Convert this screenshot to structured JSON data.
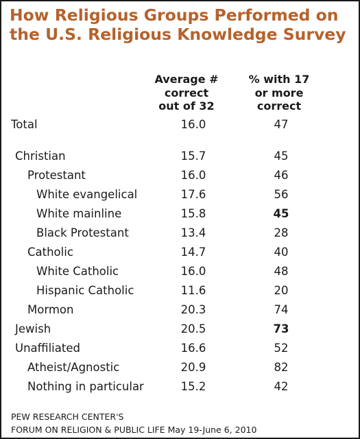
{
  "title": "How Religious Groups Performed on the U.S. Religious Knowledge Survey",
  "columns": {
    "col1": [
      "Average #",
      "correct",
      "out of 32"
    ],
    "col2": [
      "% with 17",
      "or more",
      "correct"
    ]
  },
  "source": [
    "PEW RESEARCH CENTER'S",
    "FORUM ON RELIGION & PUBLIC LIFE May 19-June 6, 2010"
  ],
  "chart_data": {
    "type": "table",
    "title": "How Religious Groups Performed on the U.S. Religious Knowledge Survey",
    "columns": [
      "Average # correct out of 32",
      "% with 17 or more correct"
    ],
    "rows": [
      {
        "label": "Total",
        "level": 0,
        "avg": "16.0",
        "pct": "47",
        "pct_bold": false
      },
      {
        "label": "Christian",
        "level": 1,
        "avg": "15.7",
        "pct": "45",
        "pct_bold": false
      },
      {
        "label": "Protestant",
        "level": 2,
        "avg": "16.0",
        "pct": "46",
        "pct_bold": false
      },
      {
        "label": "White evangelical",
        "level": 3,
        "avg": "17.6",
        "pct": "56",
        "pct_bold": false
      },
      {
        "label": "White mainline",
        "level": 3,
        "avg": "15.8",
        "pct": "45",
        "pct_bold": true
      },
      {
        "label": "Black Protestant",
        "level": 3,
        "avg": "13.4",
        "pct": "28",
        "pct_bold": false
      },
      {
        "label": "Catholic",
        "level": 2,
        "avg": "14.7",
        "pct": "40",
        "pct_bold": false
      },
      {
        "label": "White Catholic",
        "level": 3,
        "avg": "16.0",
        "pct": "48",
        "pct_bold": false
      },
      {
        "label": "Hispanic Catholic",
        "level": 3,
        "avg": "11.6",
        "pct": "20",
        "pct_bold": false
      },
      {
        "label": "Mormon",
        "level": 2,
        "avg": "20.3",
        "pct": "74",
        "pct_bold": false
      },
      {
        "label": "Jewish",
        "level": 1,
        "avg": "20.5",
        "pct": "73",
        "pct_bold": true
      },
      {
        "label": "Unaffiliated",
        "level": 1,
        "avg": "16.6",
        "pct": "52",
        "pct_bold": false
      },
      {
        "label": "Atheist/Agnostic",
        "level": 2,
        "avg": "20.9",
        "pct": "82",
        "pct_bold": false
      },
      {
        "label": "Nothing in particular",
        "level": 2,
        "avg": "15.2",
        "pct": "42",
        "pct_bold": false
      }
    ]
  }
}
